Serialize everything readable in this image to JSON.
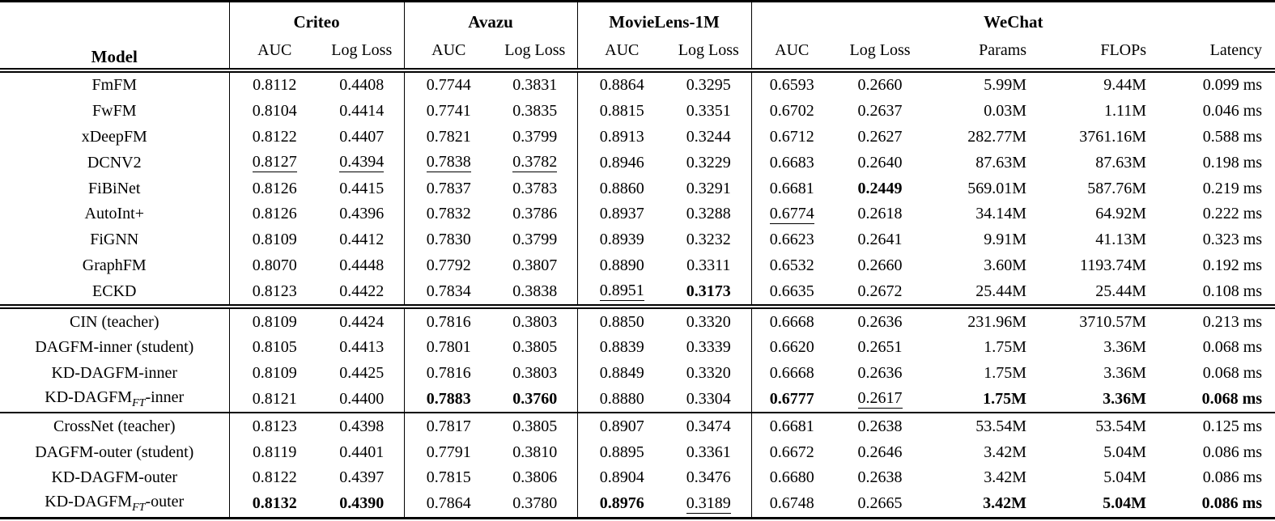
{
  "table": {
    "header": {
      "model": "Model",
      "groups": [
        {
          "label": "Criteo",
          "cols": [
            "AUC",
            "Log Loss"
          ]
        },
        {
          "label": "Avazu",
          "cols": [
            "AUC",
            "Log Loss"
          ]
        },
        {
          "label": "MovieLens-1M",
          "cols": [
            "AUC",
            "Log Loss"
          ]
        },
        {
          "label": "WeChat",
          "cols": [
            "AUC",
            "Log Loss",
            "Params",
            "FLOPs",
            "Latency"
          ]
        }
      ]
    },
    "colors": {
      "text": "#000000",
      "background": "#ffffff",
      "rule": "#000000"
    },
    "sections": [
      {
        "rows": [
          {
            "model": {
              "pre": "FmFM",
              "sub": "",
              "post": ""
            },
            "values": [
              "0.8112",
              "0.4408",
              "0.7744",
              "0.3831",
              "0.8864",
              "0.3295",
              "0.6593",
              "0.2660",
              "5.99M",
              "9.44M",
              "0.099 ms"
            ],
            "bold": [],
            "underline": []
          },
          {
            "model": {
              "pre": "FwFM",
              "sub": "",
              "post": ""
            },
            "values": [
              "0.8104",
              "0.4414",
              "0.7741",
              "0.3835",
              "0.8815",
              "0.3351",
              "0.6702",
              "0.2637",
              "0.03M",
              "1.11M",
              "0.046 ms"
            ],
            "bold": [],
            "underline": []
          },
          {
            "model": {
              "pre": "xDeepFM",
              "sub": "",
              "post": ""
            },
            "values": [
              "0.8122",
              "0.4407",
              "0.7821",
              "0.3799",
              "0.8913",
              "0.3244",
              "0.6712",
              "0.2627",
              "282.77M",
              "3761.16M",
              "0.588 ms"
            ],
            "bold": [],
            "underline": []
          },
          {
            "model": {
              "pre": "DCNV2",
              "sub": "",
              "post": ""
            },
            "values": [
              "0.8127",
              "0.4394",
              "0.7838",
              "0.3782",
              "0.8946",
              "0.3229",
              "0.6683",
              "0.2640",
              "87.63M",
              "87.63M",
              "0.198 ms"
            ],
            "bold": [],
            "underline": [
              0,
              1,
              2,
              3
            ]
          },
          {
            "model": {
              "pre": "FiBiNet",
              "sub": "",
              "post": ""
            },
            "values": [
              "0.8126",
              "0.4415",
              "0.7837",
              "0.3783",
              "0.8860",
              "0.3291",
              "0.6681",
              "0.2449",
              "569.01M",
              "587.76M",
              "0.219 ms"
            ],
            "bold": [
              7
            ],
            "underline": []
          },
          {
            "model": {
              "pre": "AutoInt+",
              "sub": "",
              "post": ""
            },
            "values": [
              "0.8126",
              "0.4396",
              "0.7832",
              "0.3786",
              "0.8937",
              "0.3288",
              "0.6774",
              "0.2618",
              "34.14M",
              "64.92M",
              "0.222 ms"
            ],
            "bold": [],
            "underline": [
              6
            ]
          },
          {
            "model": {
              "pre": "FiGNN",
              "sub": "",
              "post": ""
            },
            "values": [
              "0.8109",
              "0.4412",
              "0.7830",
              "0.3799",
              "0.8939",
              "0.3232",
              "0.6623",
              "0.2641",
              "9.91M",
              "41.13M",
              "0.323 ms"
            ],
            "bold": [],
            "underline": []
          },
          {
            "model": {
              "pre": "GraphFM",
              "sub": "",
              "post": ""
            },
            "values": [
              "0.8070",
              "0.4448",
              "0.7792",
              "0.3807",
              "0.8890",
              "0.3311",
              "0.6532",
              "0.2660",
              "3.60M",
              "1193.74M",
              "0.192 ms"
            ],
            "bold": [],
            "underline": []
          },
          {
            "model": {
              "pre": "ECKD",
              "sub": "",
              "post": ""
            },
            "values": [
              "0.8123",
              "0.4422",
              "0.7834",
              "0.3838",
              "0.8951",
              "0.3173",
              "0.6635",
              "0.2672",
              "25.44M",
              "25.44M",
              "0.108 ms"
            ],
            "bold": [
              5
            ],
            "underline": [
              4
            ]
          }
        ]
      },
      {
        "rows": [
          {
            "model": {
              "pre": "CIN (teacher)",
              "sub": "",
              "post": ""
            },
            "values": [
              "0.8109",
              "0.4424",
              "0.7816",
              "0.3803",
              "0.8850",
              "0.3320",
              "0.6668",
              "0.2636",
              "231.96M",
              "3710.57M",
              "0.213 ms"
            ],
            "bold": [],
            "underline": []
          },
          {
            "model": {
              "pre": "DAGFM-inner (student)",
              "sub": "",
              "post": ""
            },
            "values": [
              "0.8105",
              "0.4413",
              "0.7801",
              "0.3805",
              "0.8839",
              "0.3339",
              "0.6620",
              "0.2651",
              "1.75M",
              "3.36M",
              "0.068 ms"
            ],
            "bold": [],
            "underline": []
          },
          {
            "model": {
              "pre": "KD-DAGFM-inner",
              "sub": "",
              "post": ""
            },
            "values": [
              "0.8109",
              "0.4425",
              "0.7816",
              "0.3803",
              "0.8849",
              "0.3320",
              "0.6668",
              "0.2636",
              "1.75M",
              "3.36M",
              "0.068 ms"
            ],
            "bold": [],
            "underline": []
          },
          {
            "model": {
              "pre": "KD-DAGFM",
              "sub": "FT",
              "post": "-inner"
            },
            "values": [
              "0.8121",
              "0.4400",
              "0.7883",
              "0.3760",
              "0.8880",
              "0.3304",
              "0.6777",
              "0.2617",
              "1.75M",
              "3.36M",
              "0.068 ms"
            ],
            "bold": [
              2,
              3,
              6,
              8,
              9,
              10
            ],
            "underline": [
              7
            ]
          }
        ]
      },
      {
        "rows": [
          {
            "model": {
              "pre": "CrossNet (teacher)",
              "sub": "",
              "post": ""
            },
            "values": [
              "0.8123",
              "0.4398",
              "0.7817",
              "0.3805",
              "0.8907",
              "0.3474",
              "0.6681",
              "0.2638",
              "53.54M",
              "53.54M",
              "0.125 ms"
            ],
            "bold": [],
            "underline": []
          },
          {
            "model": {
              "pre": "DAGFM-outer (student)",
              "sub": "",
              "post": ""
            },
            "values": [
              "0.8119",
              "0.4401",
              "0.7791",
              "0.3810",
              "0.8895",
              "0.3361",
              "0.6672",
              "0.2646",
              "3.42M",
              "5.04M",
              "0.086 ms"
            ],
            "bold": [],
            "underline": []
          },
          {
            "model": {
              "pre": "KD-DAGFM-outer",
              "sub": "",
              "post": ""
            },
            "values": [
              "0.8122",
              "0.4397",
              "0.7815",
              "0.3806",
              "0.8904",
              "0.3476",
              "0.6680",
              "0.2638",
              "3.42M",
              "5.04M",
              "0.086 ms"
            ],
            "bold": [],
            "underline": []
          },
          {
            "model": {
              "pre": "KD-DAGFM",
              "sub": "FT",
              "post": "-outer"
            },
            "values": [
              "0.8132",
              "0.4390",
              "0.7864",
              "0.3780",
              "0.8976",
              "0.3189",
              "0.6748",
              "0.2665",
              "3.42M",
              "5.04M",
              "0.086 ms"
            ],
            "bold": [
              0,
              1,
              4,
              8,
              9,
              10
            ],
            "underline": [
              5
            ]
          }
        ]
      }
    ]
  }
}
